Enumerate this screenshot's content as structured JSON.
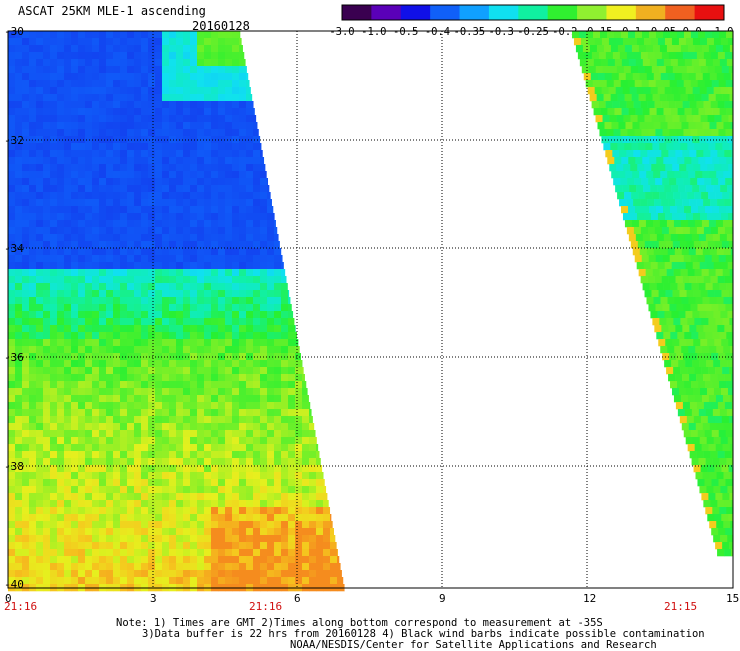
{
  "header": {
    "title": "ASCAT 25KM MLE-1 ascending",
    "date": "20160128"
  },
  "colorbar": {
    "labels": [
      "-3.0",
      "-1.0",
      "-0.5",
      "-0.4",
      "-0.35",
      "-0.3",
      "-0.25",
      "-0.2",
      "-0.15",
      "-0.1",
      "-0.05",
      "0.0",
      "1.0"
    ],
    "colors": [
      "#3a0050",
      "#5a00b8",
      "#1010e8",
      "#1060f8",
      "#10a0ff",
      "#10e0f0",
      "#10f0a0",
      "#30f030",
      "#90f030",
      "#f0f020",
      "#f0b020",
      "#f06020",
      "#e81010"
    ]
  },
  "map": {
    "y_ticks": [
      "-30",
      "-32",
      "-34",
      "-36",
      "-38",
      "-40"
    ],
    "x_ticks": [
      "0",
      "3",
      "6",
      "9",
      "12",
      "15"
    ],
    "times": [
      "21:16",
      "21:16",
      "21:15"
    ]
  },
  "notes": [
    "Note: 1) Times are GMT 2)Times along bottom correspond to measurement at -35S",
    "3)Data buffer is 22 hrs from 20160128 4) Black wind barbs indicate possible contamination",
    "NOAA/NESDIS/Center for Satellite Applications and Research"
  ]
}
